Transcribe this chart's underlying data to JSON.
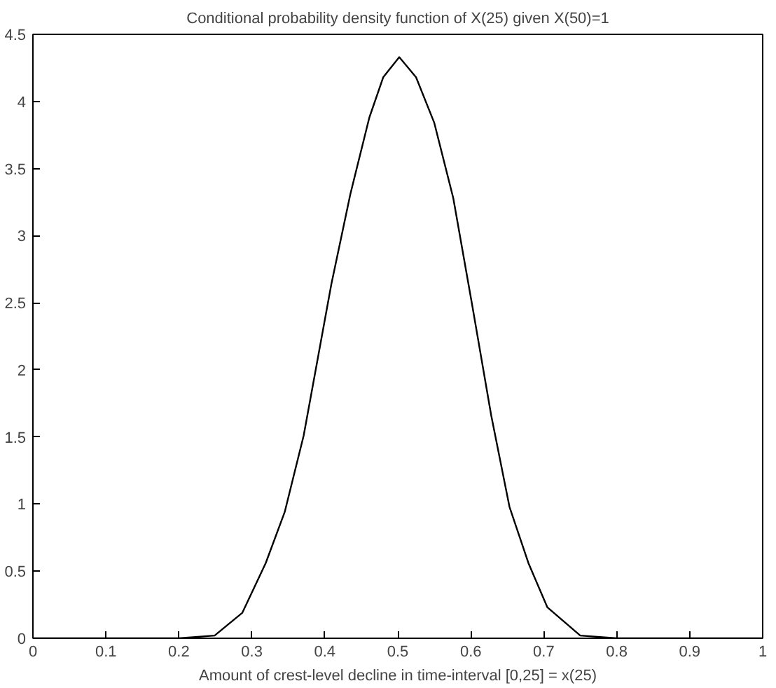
{
  "chart_data": {
    "type": "line",
    "title": "Conditional probability density function of X(25) given X(50)=1",
    "xlabel": "Amount of crest-level decline in time-interval [0,25] = x(25)",
    "x": [
      0,
      0.2,
      0.249,
      0.287,
      0.319,
      0.345,
      0.371,
      0.409,
      0.435,
      0.461,
      0.48,
      0.502,
      0.525,
      0.55,
      0.576,
      0.602,
      0.628,
      0.653,
      0.679,
      0.705,
      0.75,
      0.8,
      1
    ],
    "series": [
      {
        "color": "#000000",
        "values": [
          0,
          0,
          0.02,
          0.19,
          0.56,
          0.94,
          1.51,
          2.64,
          3.31,
          3.88,
          4.18,
          4.33,
          4.18,
          3.84,
          3.28,
          2.48,
          1.66,
          0.98,
          0.56,
          0.23,
          0.02,
          0,
          0
        ]
      }
    ],
    "xlim": [
      0,
      1
    ],
    "ylim": [
      0,
      4.5
    ],
    "xticks": [
      0,
      0.1,
      0.2,
      0.3,
      0.4,
      0.5,
      0.6,
      0.7,
      0.8,
      0.9,
      1
    ],
    "yticks": [
      0,
      0.5,
      1,
      1.5,
      2,
      2.5,
      3,
      3.5,
      4,
      4.5
    ],
    "grid": false,
    "marker": "none",
    "line_style": "solid"
  }
}
